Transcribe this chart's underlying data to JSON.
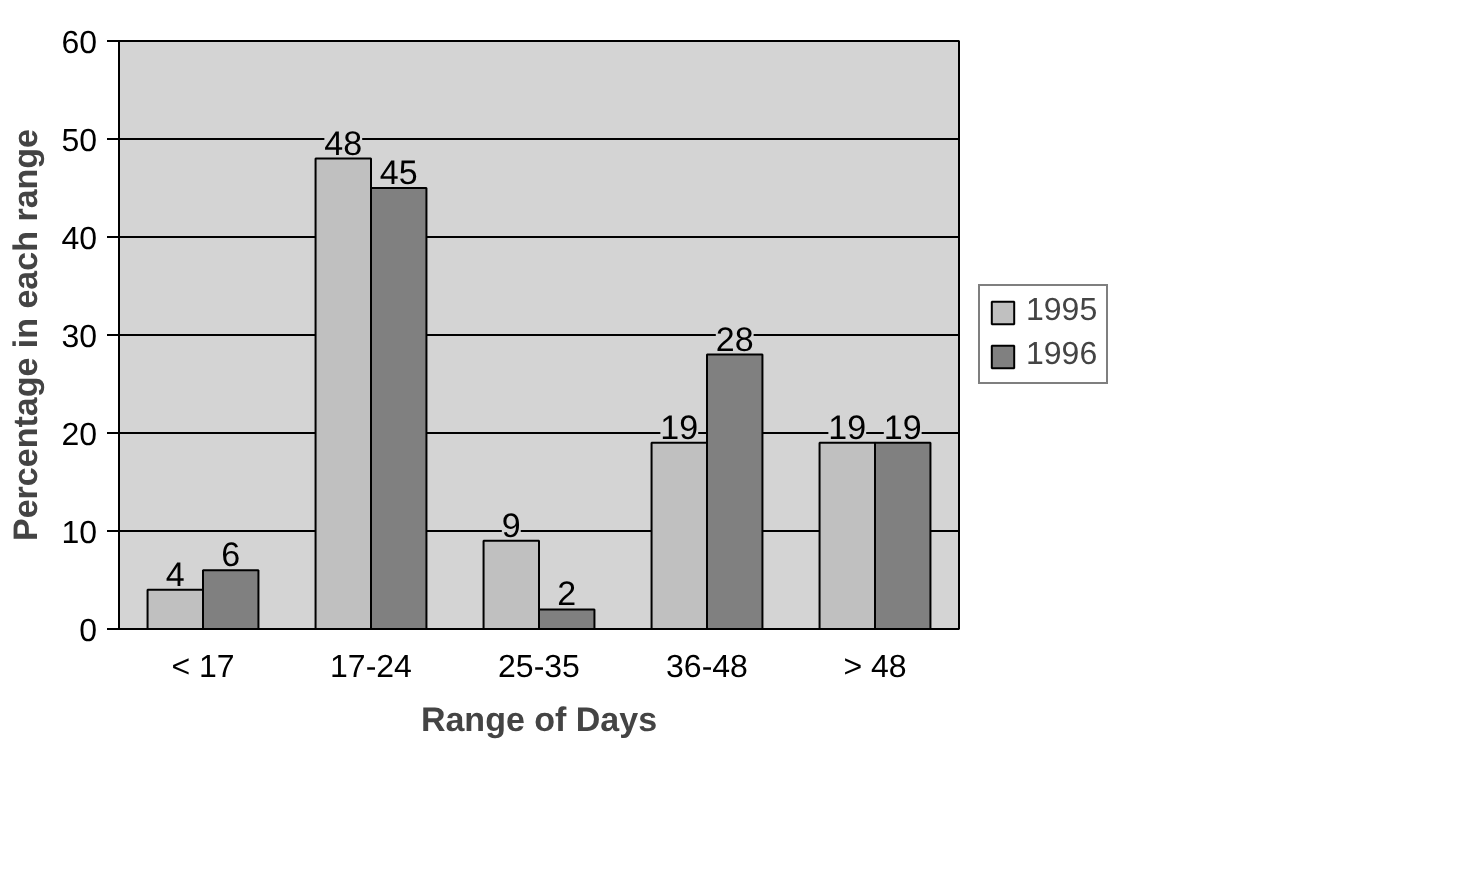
{
  "chart_data": {
    "type": "bar",
    "xlabel": "Range of Days",
    "ylabel": "Percentage in each range",
    "categories": [
      "< 17",
      "17-24",
      "25-35",
      "36-48",
      "> 48"
    ],
    "series": [
      {
        "name": "1995",
        "color": "#c0c0c0",
        "values": [
          4,
          48,
          9,
          19,
          19
        ]
      },
      {
        "name": "1996",
        "color": "#808080",
        "values": [
          6,
          45,
          2,
          28,
          19
        ]
      }
    ],
    "ylim": [
      0,
      60
    ],
    "yticks": [
      0,
      10,
      20,
      30,
      40,
      50,
      60
    ],
    "grid": "y",
    "legend": "right",
    "data_labels": true
  }
}
